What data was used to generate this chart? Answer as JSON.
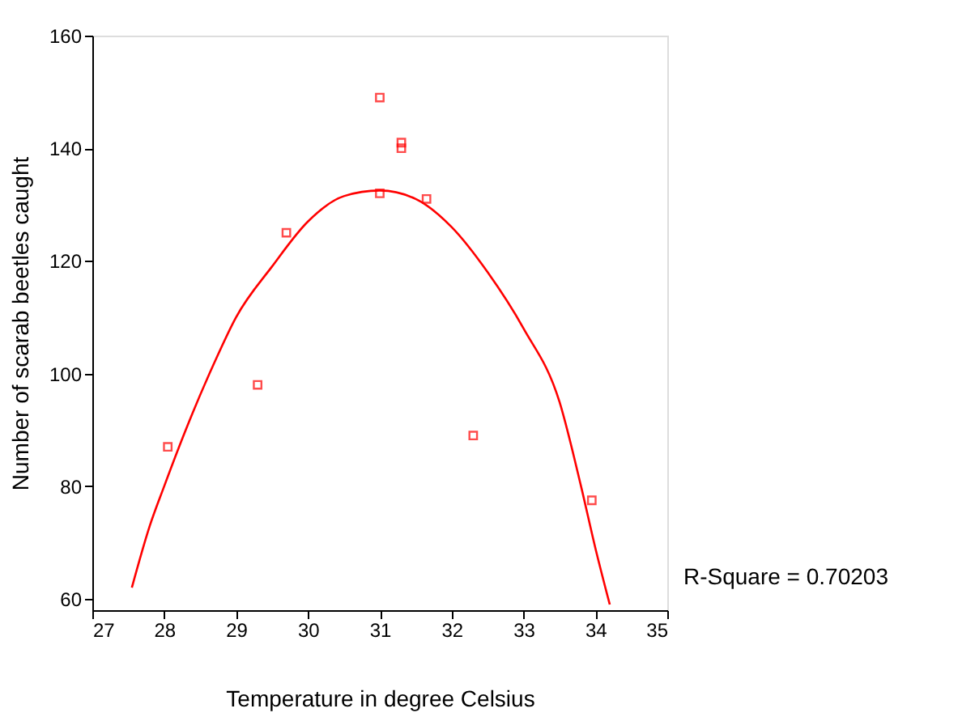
{
  "chart_data": {
    "type": "scatter",
    "xlabel": "Temperature in degree Celsius",
    "ylabel": "Number of scarab beetles caught",
    "xlim": [
      27,
      35
    ],
    "xticks": [
      27,
      28,
      29,
      30,
      31,
      32,
      33,
      34,
      35
    ],
    "ylim": [
      58,
      160
    ],
    "yticks": [
      60,
      80,
      100,
      120,
      140,
      160
    ],
    "grid": false,
    "series": [
      {
        "marker": "square",
        "color": "#ff0000",
        "x": [
          28.05,
          29.3,
          29.7,
          31.0,
          31.0,
          31.3,
          31.3,
          31.65,
          32.3,
          33.95
        ],
        "values": [
          87,
          98,
          125,
          149,
          132,
          141,
          140,
          131,
          89,
          77.5
        ]
      },
      {
        "type": "line",
        "marker": "none",
        "color": "#ff0000",
        "x": [
          27.55,
          27.8,
          28.0,
          28.3,
          28.7,
          29.0,
          29.5,
          30.0,
          30.5,
          31.0,
          31.5,
          32.0,
          32.5,
          33.0,
          33.5,
          33.8,
          34.0,
          34.2
        ],
        "values": [
          62,
          73,
          80,
          90,
          102,
          110,
          119,
          127,
          131.5,
          132.5,
          131,
          126,
          118,
          108,
          95,
          80,
          69,
          59
        ]
      }
    ],
    "annotations": [
      "R-Square = 0.70203"
    ]
  }
}
